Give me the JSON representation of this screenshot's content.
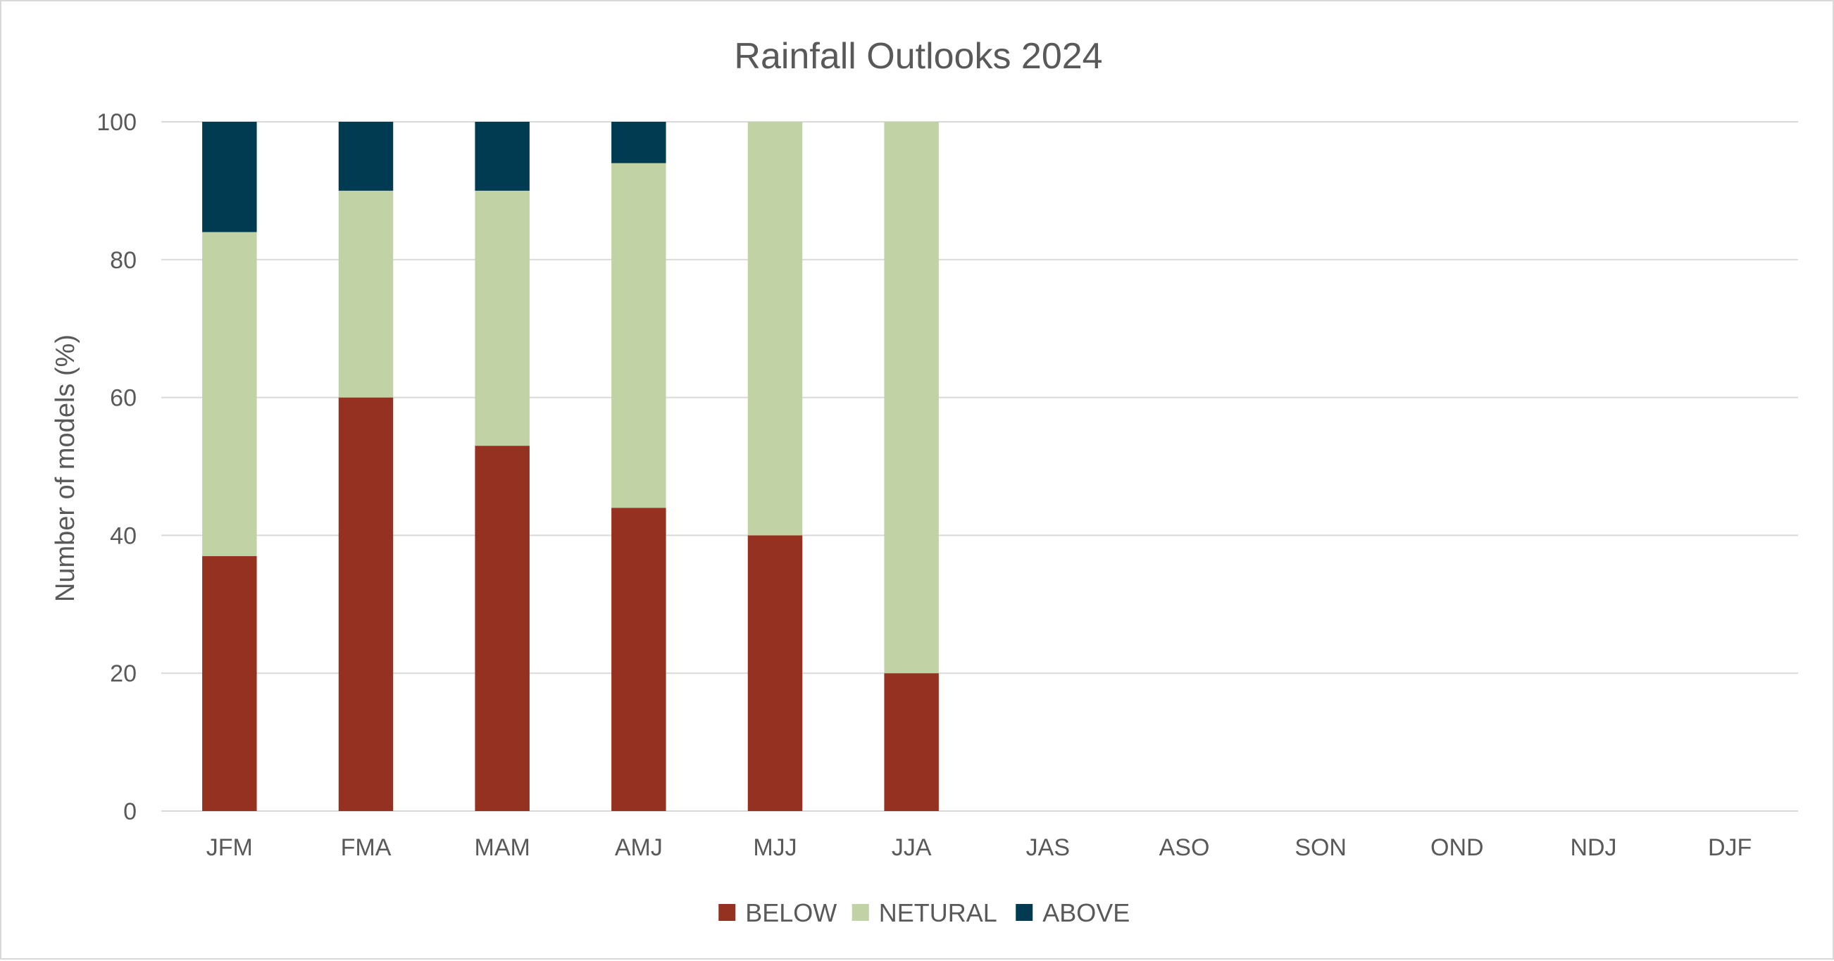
{
  "chart_data": {
    "type": "bar",
    "stacked": true,
    "title": "Rainfall Outlooks 2024",
    "xlabel": "",
    "ylabel": "Number of models (%)",
    "ylim": [
      0,
      100
    ],
    "yticks": [
      "0",
      "20",
      "40",
      "60",
      "80",
      "100"
    ],
    "categories": [
      "JFM",
      "FMA",
      "MAM",
      "AMJ",
      "MJJ",
      "JJA",
      "JAS",
      "ASO",
      "SON",
      "OND",
      "NDJ",
      "DJF"
    ],
    "series": [
      {
        "name": "BELOW",
        "color": "#943121",
        "values": [
          37,
          60,
          53,
          44,
          40,
          20,
          null,
          null,
          null,
          null,
          null,
          null
        ]
      },
      {
        "name": "NETURAL",
        "color": "#c1d2a4",
        "values": [
          47,
          30,
          37,
          50,
          60,
          80,
          null,
          null,
          null,
          null,
          null,
          null
        ]
      },
      {
        "name": "ABOVE",
        "color": "#003b52",
        "values": [
          16,
          10,
          10,
          6,
          0,
          0,
          null,
          null,
          null,
          null,
          null,
          null
        ]
      }
    ],
    "grid": true,
    "legend_position": "bottom"
  }
}
